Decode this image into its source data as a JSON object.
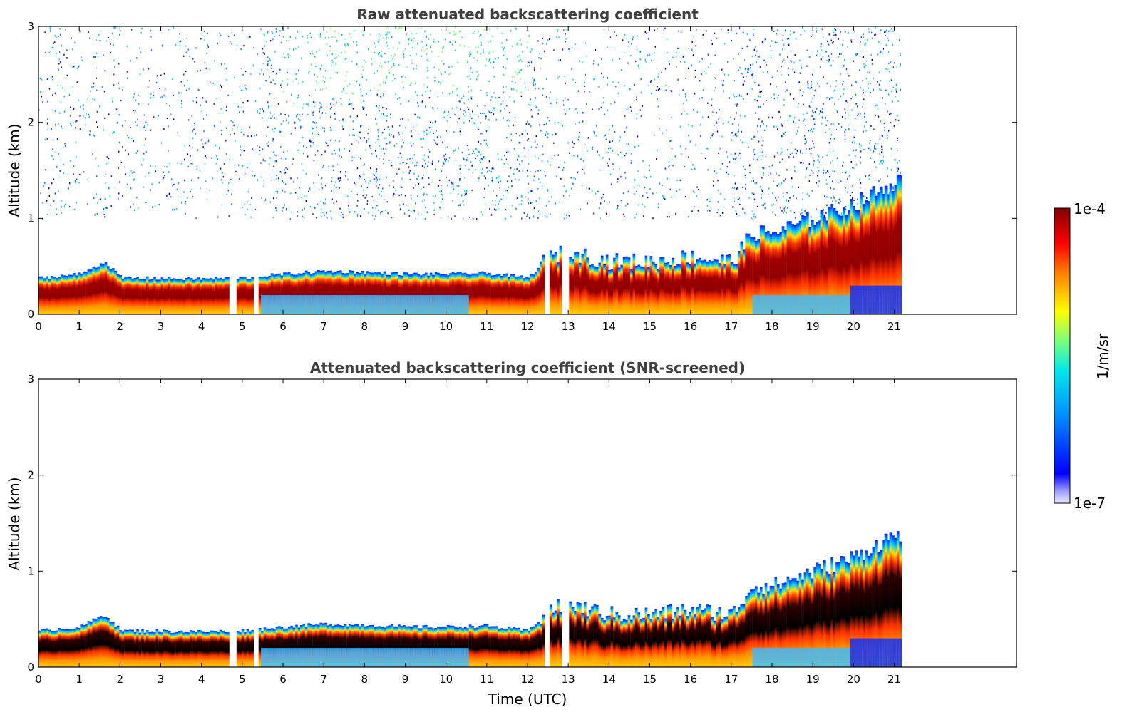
{
  "chart_data": [
    {
      "type": "heatmap",
      "title": "Raw attenuated backscattering coefficient",
      "xlabel": "",
      "ylabel": "Altitude (km)",
      "xlim": [
        0,
        24
      ],
      "ylim": [
        0,
        3
      ],
      "x_ticks": [
        "0",
        "1",
        "2",
        "3",
        "4",
        "5",
        "6",
        "7",
        "8",
        "9",
        "10",
        "11",
        "12",
        "13",
        "14",
        "15",
        "16",
        "17",
        "18",
        "19",
        "20",
        "21"
      ],
      "y_ticks": [
        "0",
        "1",
        "2",
        "3"
      ],
      "data_end_time": 21.15,
      "noise_above_boundary_layer": true,
      "gaps": [
        [
          4.73,
          4.83
        ],
        [
          5.28,
          5.38
        ],
        [
          12.45,
          12.5
        ],
        [
          12.85,
          12.98
        ]
      ],
      "boundary_layer_top": [
        [
          0,
          0.38
        ],
        [
          1,
          0.42
        ],
        [
          1.6,
          0.55
        ],
        [
          2,
          0.38
        ],
        [
          4,
          0.37
        ],
        [
          5,
          0.38
        ],
        [
          6,
          0.42
        ],
        [
          7,
          0.45
        ],
        [
          8,
          0.44
        ],
        [
          9,
          0.42
        ],
        [
          10,
          0.42
        ],
        [
          11,
          0.43
        ],
        [
          12,
          0.38
        ],
        [
          12.5,
          0.6
        ],
        [
          13,
          0.65
        ],
        [
          14,
          0.55
        ],
        [
          15,
          0.55
        ],
        [
          16,
          0.6
        ],
        [
          17,
          0.55
        ],
        [
          17.5,
          0.85
        ],
        [
          18,
          0.85
        ],
        [
          19,
          1.0
        ],
        [
          20,
          1.15
        ],
        [
          21,
          1.38
        ],
        [
          21.15,
          1.4
        ]
      ]
    },
    {
      "type": "heatmap",
      "title": "Attenuated backscattering coefficient (SNR-screened)",
      "xlabel": "Time (UTC)",
      "ylabel": "Altitude (km)",
      "xlim": [
        0,
        24
      ],
      "ylim": [
        0,
        3
      ],
      "x_ticks": [
        "0",
        "1",
        "2",
        "3",
        "4",
        "5",
        "6",
        "7",
        "8",
        "9",
        "10",
        "11",
        "12",
        "13",
        "14",
        "15",
        "16",
        "17",
        "18",
        "19",
        "20",
        "21"
      ],
      "y_ticks": [
        "0",
        "1",
        "2",
        "3"
      ],
      "data_end_time": 21.15,
      "noise_above_boundary_layer": false,
      "gaps": [
        [
          4.73,
          4.83
        ],
        [
          5.28,
          5.38
        ],
        [
          12.45,
          12.5
        ],
        [
          12.85,
          12.98
        ]
      ],
      "boundary_layer_top": [
        [
          0,
          0.38
        ],
        [
          1,
          0.42
        ],
        [
          1.6,
          0.55
        ],
        [
          2,
          0.38
        ],
        [
          4,
          0.37
        ],
        [
          5,
          0.38
        ],
        [
          6,
          0.42
        ],
        [
          7,
          0.45
        ],
        [
          8,
          0.44
        ],
        [
          9,
          0.42
        ],
        [
          10,
          0.42
        ],
        [
          11,
          0.43
        ],
        [
          12,
          0.38
        ],
        [
          12.5,
          0.6
        ],
        [
          13,
          0.65
        ],
        [
          14,
          0.55
        ],
        [
          15,
          0.55
        ],
        [
          16,
          0.6
        ],
        [
          17,
          0.55
        ],
        [
          17.5,
          0.85
        ],
        [
          18,
          0.85
        ],
        [
          19,
          1.0
        ],
        [
          20,
          1.15
        ],
        [
          21,
          1.38
        ],
        [
          21.15,
          1.4
        ]
      ]
    }
  ],
  "colorbar": {
    "max_label": "1e-4",
    "min_label": "1e-7",
    "unit_label": "1/m/sr",
    "scale": "log",
    "colors": [
      "#ffffff",
      "#0000ff",
      "#0090ff",
      "#00e8e8",
      "#7cff7c",
      "#ffff00",
      "#ff8000",
      "#ff0000",
      "#800000"
    ]
  }
}
